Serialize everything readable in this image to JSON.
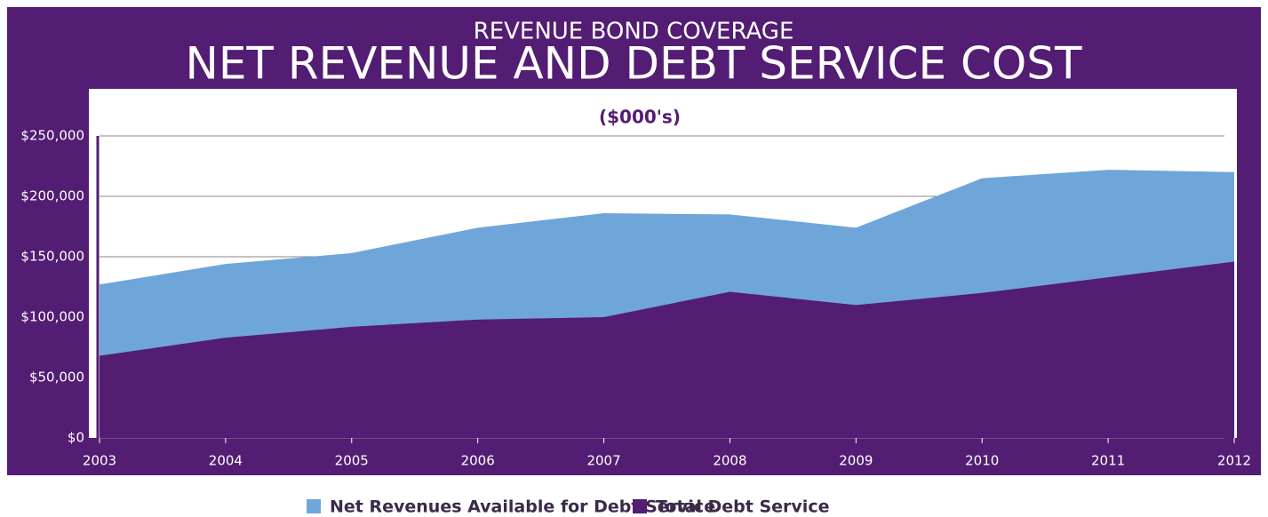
{
  "chart_data": {
    "type": "area",
    "title": "NET REVENUE AND DEBT SERVICE COST",
    "supertitle": "REVENUE BOND COVERAGE",
    "subtitle": "($000's)",
    "categories": [
      "2003",
      "2004",
      "2005",
      "2006",
      "2007",
      "2008",
      "2009",
      "2010",
      "2011",
      "2012"
    ],
    "series": [
      {
        "name": "Net Revenues Available for Debt Service",
        "color": "#6fa6d9",
        "values": [
          127000,
          144000,
          153000,
          174000,
          186000,
          185000,
          174000,
          215000,
          222000,
          220000
        ]
      },
      {
        "name": "Total Debt Service",
        "color": "#531d73",
        "values": [
          68000,
          83000,
          92000,
          98000,
          100000,
          121000,
          110000,
          120000,
          133000,
          146000
        ]
      }
    ],
    "ylim": [
      0,
      250000
    ],
    "yticks": [
      {
        "value": 0,
        "label": "$0"
      },
      {
        "value": 50000,
        "label": "$50,000"
      },
      {
        "value": 100000,
        "label": "$100,000"
      },
      {
        "value": 150000,
        "label": "$150,000"
      },
      {
        "value": 200000,
        "label": "$200,000"
      },
      {
        "value": 250000,
        "label": "$250,000"
      }
    ],
    "grid": true
  }
}
